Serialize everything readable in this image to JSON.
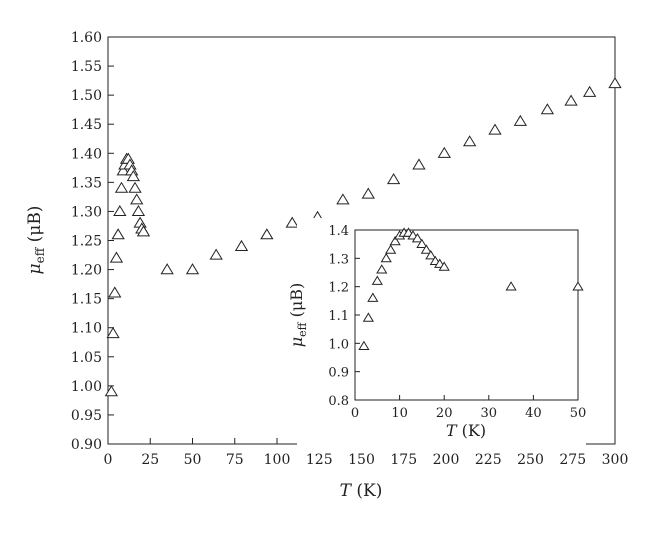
{
  "chart_data": [
    {
      "type": "scatter",
      "marker": "open-triangle",
      "xlabel_italic": "T",
      "xlabel_rest": " (K)",
      "ylabel_italic": "μ",
      "ylabel_sub": "eff",
      "ylabel_rest": " (μB)",
      "xlim": [
        0,
        300
      ],
      "ylim": [
        0.9,
        1.6
      ],
      "xticks": [
        "0",
        "25",
        "50",
        "75",
        "100",
        "125",
        "150",
        "175",
        "200",
        "225",
        "250",
        "275",
        "300"
      ],
      "yticks": [
        "0.90",
        "0.95",
        "1.00",
        "1.05",
        "1.10",
        "1.15",
        "1.20",
        "1.25",
        "1.30",
        "1.35",
        "1.40",
        "1.45",
        "1.50",
        "1.55",
        "1.60"
      ],
      "points": [
        [
          2,
          0.99
        ],
        [
          3,
          1.09
        ],
        [
          4,
          1.16
        ],
        [
          5,
          1.22
        ],
        [
          6,
          1.26
        ],
        [
          7,
          1.3
        ],
        [
          8,
          1.34
        ],
        [
          9,
          1.37
        ],
        [
          10,
          1.38
        ],
        [
          11,
          1.39
        ],
        [
          12,
          1.39
        ],
        [
          13,
          1.38
        ],
        [
          14,
          1.37
        ],
        [
          15,
          1.36
        ],
        [
          16,
          1.34
        ],
        [
          17,
          1.32
        ],
        [
          18,
          1.3
        ],
        [
          19,
          1.28
        ],
        [
          20,
          1.27
        ],
        [
          21,
          1.265
        ],
        [
          35,
          1.2
        ],
        [
          50,
          1.2
        ],
        [
          64,
          1.225
        ],
        [
          79,
          1.24
        ],
        [
          94,
          1.26
        ],
        [
          109,
          1.28
        ],
        [
          124,
          1.29
        ],
        [
          139,
          1.32
        ],
        [
          154,
          1.33
        ],
        [
          169,
          1.355
        ],
        [
          184,
          1.38
        ],
        [
          199,
          1.4
        ],
        [
          214,
          1.42
        ],
        [
          229,
          1.44
        ],
        [
          244,
          1.455
        ],
        [
          260,
          1.475
        ],
        [
          274,
          1.49
        ],
        [
          285,
          1.505
        ],
        [
          300,
          1.52
        ]
      ]
    },
    {
      "type": "scatter",
      "marker": "open-triangle",
      "inset": true,
      "xlabel_italic": "T",
      "xlabel_rest": " (K)",
      "ylabel_italic": "μ",
      "ylabel_sub": "eff",
      "ylabel_rest": " (μB)",
      "xlim": [
        0,
        50
      ],
      "ylim": [
        0.8,
        1.4
      ],
      "xticks": [
        "0",
        "10",
        "20",
        "30",
        "40",
        "50"
      ],
      "yticks": [
        "0.8",
        "0.9",
        "1.0",
        "1.1",
        "1.2",
        "1.3",
        "1.4"
      ],
      "points": [
        [
          2,
          0.99
        ],
        [
          3,
          1.09
        ],
        [
          4,
          1.16
        ],
        [
          5,
          1.22
        ],
        [
          6,
          1.26
        ],
        [
          7,
          1.3
        ],
        [
          8,
          1.33
        ],
        [
          9,
          1.36
        ],
        [
          10,
          1.38
        ],
        [
          11,
          1.39
        ],
        [
          12,
          1.39
        ],
        [
          13,
          1.38
        ],
        [
          14,
          1.37
        ],
        [
          15,
          1.35
        ],
        [
          16,
          1.33
        ],
        [
          17,
          1.31
        ],
        [
          18,
          1.29
        ],
        [
          19,
          1.28
        ],
        [
          20,
          1.27
        ],
        [
          35,
          1.2
        ],
        [
          50,
          1.2
        ]
      ]
    }
  ]
}
